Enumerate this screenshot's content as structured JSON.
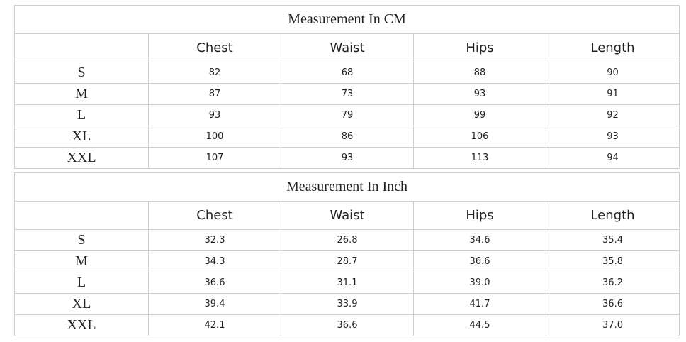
{
  "tables": [
    {
      "title": "Measurement In CM",
      "columns": [
        "Chest",
        "Waist",
        "Hips",
        "Length"
      ],
      "rows": [
        [
          "S",
          "82",
          "68",
          "88",
          "90"
        ],
        [
          "M",
          "87",
          "73",
          "93",
          "91"
        ],
        [
          "L",
          "93",
          "79",
          "99",
          "92"
        ],
        [
          "XL",
          "100",
          "86",
          "106",
          "93"
        ],
        [
          "XXL",
          "107",
          "93",
          "113",
          "94"
        ]
      ]
    },
    {
      "title": "Measurement In Inch",
      "columns": [
        "Chest",
        "Waist",
        "Hips",
        "Length"
      ],
      "rows": [
        [
          "S",
          "32.3",
          "26.8",
          "34.6",
          "35.4"
        ],
        [
          "M",
          "34.3",
          "28.7",
          "36.6",
          "35.8"
        ],
        [
          "L",
          "36.6",
          "31.1",
          "39.0",
          "36.2"
        ],
        [
          "XL",
          "39.4",
          "33.9",
          "41.7",
          "36.6"
        ],
        [
          "XXL",
          "42.1",
          "36.6",
          "44.5",
          "37.0"
        ]
      ]
    }
  ]
}
